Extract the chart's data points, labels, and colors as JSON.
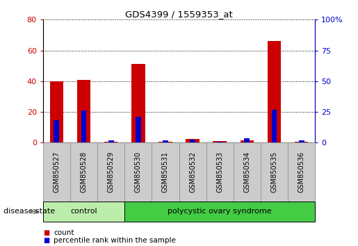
{
  "title": "GDS4399 / 1559353_at",
  "samples": [
    "GSM850527",
    "GSM850528",
    "GSM850529",
    "GSM850530",
    "GSM850531",
    "GSM850532",
    "GSM850533",
    "GSM850534",
    "GSM850535",
    "GSM850536"
  ],
  "count_values": [
    40,
    41,
    0.5,
    51,
    0.5,
    2.5,
    1,
    1.5,
    66,
    0.5
  ],
  "percentile_values": [
    18,
    26,
    2,
    21,
    2,
    2.5,
    1,
    3.5,
    27,
    2
  ],
  "left_ylim": [
    0,
    80
  ],
  "right_ylim": [
    0,
    100
  ],
  "left_yticks": [
    0,
    20,
    40,
    60,
    80
  ],
  "right_yticks": [
    0,
    25,
    50,
    75,
    100
  ],
  "right_yticklabels": [
    "0",
    "25",
    "50",
    "75",
    "100%"
  ],
  "bar_color": "#cc0000",
  "percentile_color": "#0000cc",
  "count_bar_width": 0.5,
  "pct_bar_width": 0.2,
  "groups": [
    {
      "label": "control",
      "indices": [
        0,
        1,
        2
      ],
      "color": "#bbeeaa"
    },
    {
      "label": "polycystic ovary syndrome",
      "indices": [
        3,
        4,
        5,
        6,
        7,
        8,
        9
      ],
      "color": "#44cc44"
    }
  ],
  "disease_state_label": "disease state",
  "legend_count_label": "count",
  "legend_pct_label": "percentile rank within the sample",
  "grid_color": "black",
  "background_color": "#ffffff",
  "tickbox_color": "#cccccc",
  "tickbox_edge": "#999999"
}
